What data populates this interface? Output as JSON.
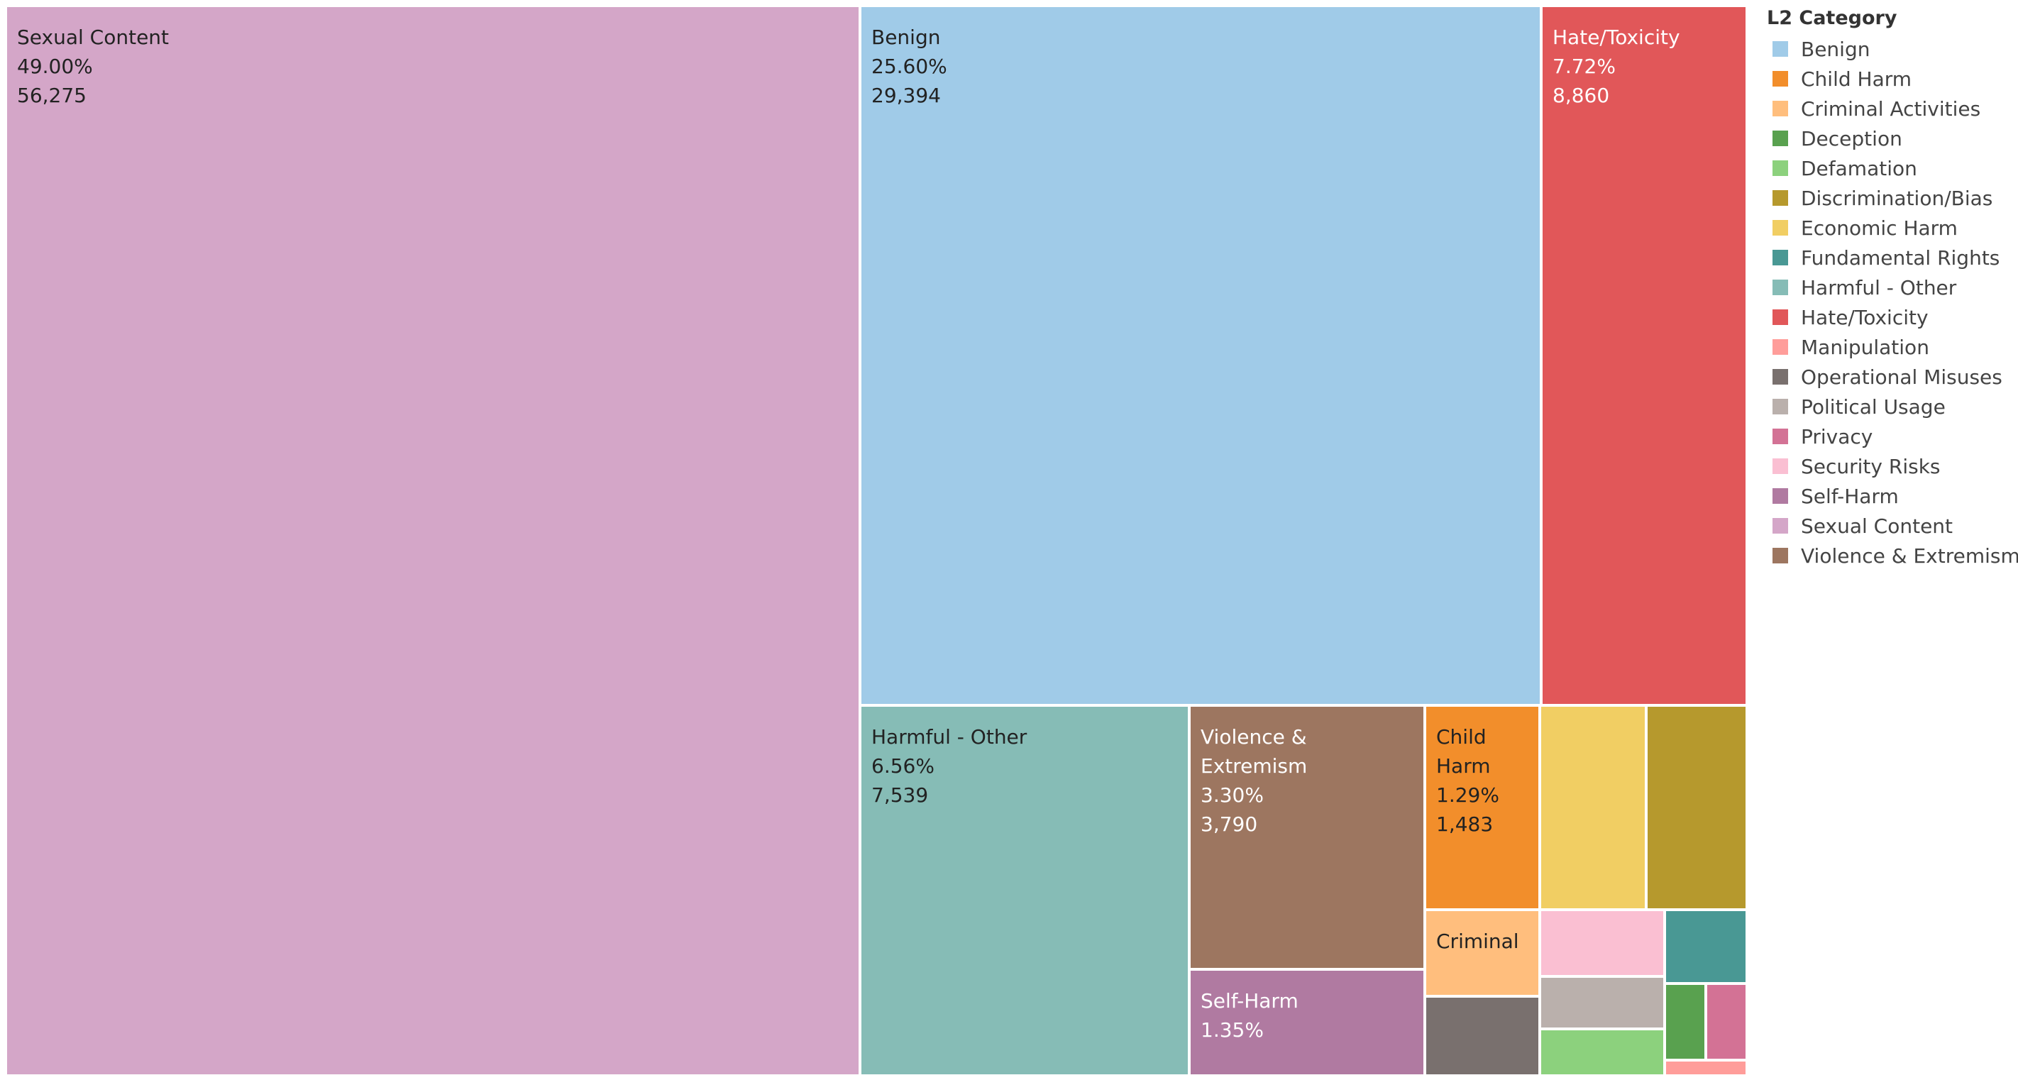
{
  "chart_data": {
    "type": "treemap",
    "legend": {
      "title": "L2 Category",
      "position": "right"
    },
    "categories": [
      "Benign",
      "Child Harm",
      "Criminal Activities",
      "Deception",
      "Defamation",
      "Discrimination/Bias",
      "Economic Harm",
      "Fundamental Rights",
      "Harmful - Other",
      "Hate/Toxicity",
      "Manipulation",
      "Operational Misuses",
      "Political Usage",
      "Privacy",
      "Security Risks",
      "Self-Harm",
      "Sexual Content",
      "Violence & Extremism"
    ],
    "colors": {
      "Benign": "#a0cbe8",
      "Child Harm": "#f28e2b",
      "Criminal Activities": "#ffbe7d",
      "Deception": "#59a14f",
      "Defamation": "#8cd17d",
      "Discrimination/Bias": "#b6992d",
      "Economic Harm": "#f1ce63",
      "Fundamental Rights": "#499894",
      "Harmful - Other": "#86bcb6",
      "Hate/Toxicity": "#e15759",
      "Manipulation": "#ff9d9a",
      "Operational Misuses": "#79706e",
      "Political Usage": "#bab0ac",
      "Privacy": "#d37295",
      "Security Risks": "#fabfd2",
      "Self-Harm": "#b07aa1",
      "Sexual Content": "#d4a6c8",
      "Violence & Extremism": "#9d7660"
    },
    "tiles": [
      {
        "category": "Sexual Content",
        "label": "Sexual Content",
        "percent": "49.00%",
        "count": "56,275",
        "value": 56275,
        "text_color": "#222222"
      },
      {
        "category": "Benign",
        "label": "Benign",
        "percent": "25.60%",
        "count": "29,394",
        "value": 29394,
        "text_color": "#222222"
      },
      {
        "category": "Hate/Toxicity",
        "label": "Hate/Toxicity",
        "percent": "7.72%",
        "count": "8,860",
        "value": 8860,
        "text_color": "#ffffff"
      },
      {
        "category": "Harmful - Other",
        "label": "Harmful - Other",
        "percent": "6.56%",
        "count": "7,539",
        "value": 7539,
        "text_color": "#222222"
      },
      {
        "category": "Violence & Extremism",
        "label": "Violence & Extremism",
        "percent": "3.30%",
        "count": "3,790",
        "value": 3790,
        "text_color": "#ffffff"
      },
      {
        "category": "Child Harm",
        "label": "Child Harm",
        "percent": "1.29%",
        "count": "1,483",
        "value": 1483,
        "text_color": "#222222"
      },
      {
        "category": "Self-Harm",
        "label": "Self-Harm",
        "percent": "1.35%",
        "text_color": "#ffffff"
      },
      {
        "category": "Criminal Activities",
        "label": "Criminal",
        "text_color": "#222222"
      },
      {
        "category": "Economic Harm"
      },
      {
        "category": "Discrimination/Bias"
      },
      {
        "category": "Security Risks"
      },
      {
        "category": "Fundamental Rights"
      },
      {
        "category": "Political Usage"
      },
      {
        "category": "Operational Misuses"
      },
      {
        "category": "Defamation"
      },
      {
        "category": "Deception"
      },
      {
        "category": "Privacy"
      },
      {
        "category": "Manipulation"
      }
    ]
  }
}
